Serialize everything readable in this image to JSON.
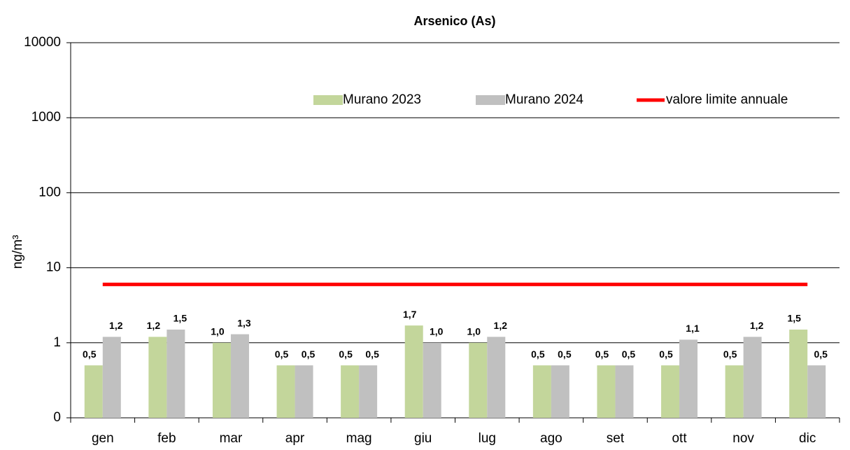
{
  "chart_data": {
    "type": "bar",
    "title": "Arsenico (As)",
    "y_label": "ng/m³",
    "categories": [
      "gen",
      "feb",
      "mar",
      "apr",
      "mag",
      "giu",
      "lug",
      "ago",
      "set",
      "ott",
      "nov",
      "dic"
    ],
    "series": [
      {
        "name": "Murano 2023",
        "color": "#c3d69b",
        "values": [
          0.5,
          1.2,
          1.0,
          0.5,
          0.5,
          1.7,
          1.0,
          0.5,
          0.5,
          0.5,
          0.5,
          1.5
        ],
        "value_labels": [
          "0,5",
          "1,2",
          "1,0",
          "0,5",
          "0,5",
          "1,7",
          "1,0",
          "0,5",
          "0,5",
          "0,5",
          "0,5",
          "1,5"
        ]
      },
      {
        "name": "Murano 2024",
        "color": "#c0c0c0",
        "values": [
          1.2,
          1.5,
          1.3,
          0.5,
          0.5,
          1.0,
          1.2,
          0.5,
          0.5,
          1.1,
          1.2,
          0.5
        ],
        "value_labels": [
          "1,2",
          "1,5",
          "1,3",
          "0,5",
          "0,5",
          "1,0",
          "1,2",
          "0,5",
          "0,5",
          "1,1",
          "1,2",
          "0,5"
        ]
      }
    ],
    "limit": {
      "name": "valore limite annuale",
      "value": 6,
      "color": "#ff0000"
    },
    "log_scale": true,
    "ylim": [
      0.1,
      10000
    ],
    "yticks": [
      {
        "value": 0.1,
        "label": "0"
      },
      1,
      10,
      100,
      1000,
      10000
    ],
    "grid": true
  }
}
